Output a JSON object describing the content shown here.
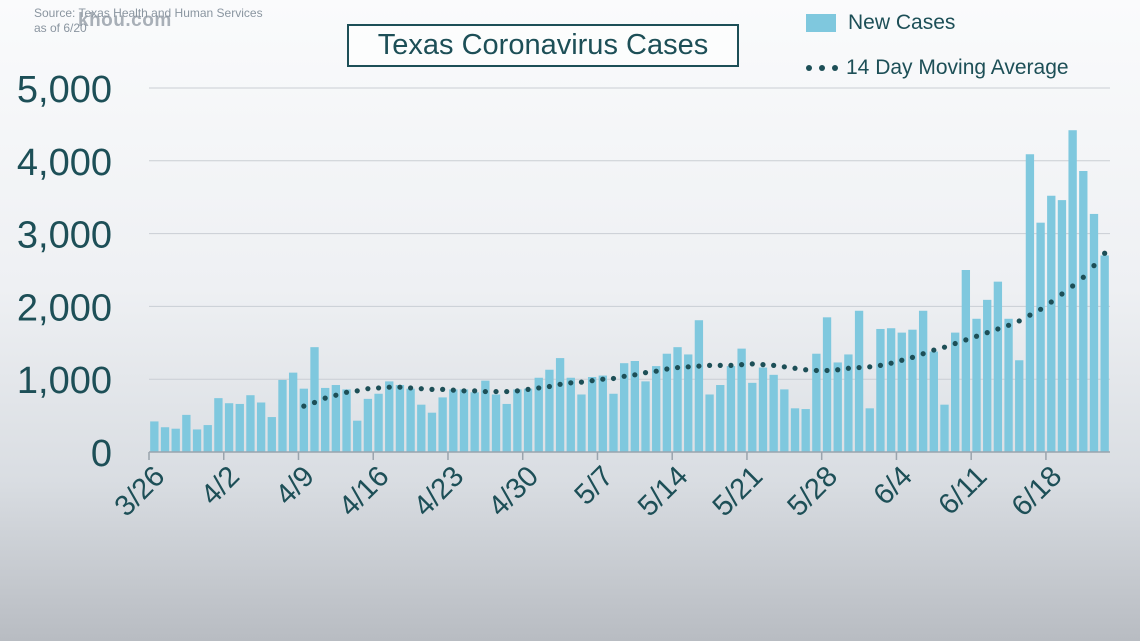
{
  "source": {
    "line1": "Source: Texas Health and Human Services",
    "line2": "as of 6/20"
  },
  "watermark": "khou.com",
  "colors": {
    "bar": "#7fc8de",
    "avg": "#1d4f57",
    "text": "#1d4f57",
    "grid": "#c9ced4"
  },
  "chart_data": {
    "type": "bar",
    "title": "Texas Coronavirus Cases",
    "xlabel": "",
    "ylabel": "",
    "ylim": [
      0,
      5000
    ],
    "yticks": [
      0,
      1000,
      2000,
      3000,
      4000,
      5000
    ],
    "ytick_labels": [
      "0",
      "1,000",
      "2,000",
      "3,000",
      "4,000",
      "5,000"
    ],
    "xtick_labels": [
      "3/26",
      "4/2",
      "4/9",
      "4/16",
      "4/23",
      "4/30",
      "5/7",
      "5/14",
      "5/21",
      "5/28",
      "6/4",
      "6/11",
      "6/18"
    ],
    "grid": true,
    "legend_placement": "top-right",
    "categories": [
      "3/26",
      "3/27",
      "3/28",
      "3/29",
      "3/30",
      "3/31",
      "4/1",
      "4/2",
      "4/3",
      "4/4",
      "4/5",
      "4/6",
      "4/7",
      "4/8",
      "4/9",
      "4/10",
      "4/11",
      "4/12",
      "4/13",
      "4/14",
      "4/15",
      "4/16",
      "4/17",
      "4/18",
      "4/19",
      "4/20",
      "4/21",
      "4/22",
      "4/23",
      "4/24",
      "4/25",
      "4/26",
      "4/27",
      "4/28",
      "4/29",
      "4/30",
      "5/1",
      "5/2",
      "5/3",
      "5/4",
      "5/5",
      "5/6",
      "5/7",
      "5/8",
      "5/9",
      "5/10",
      "5/11",
      "5/12",
      "5/13",
      "5/14",
      "5/15",
      "5/16",
      "5/17",
      "5/18",
      "5/19",
      "5/20",
      "5/21",
      "5/22",
      "5/23",
      "5/24",
      "5/25",
      "5/26",
      "5/27",
      "5/28",
      "5/29",
      "5/30",
      "5/31",
      "6/1",
      "6/2",
      "6/3",
      "6/4",
      "6/5",
      "6/6",
      "6/7",
      "6/8",
      "6/9",
      "6/10",
      "6/11",
      "6/12",
      "6/13",
      "6/14",
      "6/15",
      "6/16",
      "6/17",
      "6/18",
      "6/19",
      "6/20",
      "6/21",
      "6/22",
      "6/23"
    ],
    "series": [
      {
        "name": "New Cases",
        "values": [
          420,
          340,
          320,
          510,
          310,
          370,
          740,
          670,
          660,
          780,
          680,
          480,
          990,
          1090,
          870,
          1440,
          880,
          920,
          860,
          430,
          730,
          800,
          970,
          920,
          870,
          650,
          540,
          750,
          860,
          860,
          820,
          980,
          790,
          660,
          860,
          870,
          1020,
          1130,
          1290,
          1020,
          790,
          1030,
          1050,
          800,
          1220,
          1250,
          970,
          1180,
          1350,
          1440,
          1340,
          1810,
          790,
          920,
          1180,
          1420,
          950,
          1160,
          1060,
          860,
          600,
          590,
          1350,
          1850,
          1230,
          1340,
          1940,
          600,
          1690,
          1700,
          1640,
          1680,
          1940,
          1380,
          650,
          1640,
          2500,
          1830,
          2090,
          2340,
          1830,
          1260,
          4090,
          3150,
          3520,
          3460,
          4420,
          3860,
          3270,
          2700
        ]
      },
      {
        "name": "14 Day Moving Average",
        "values": [
          null,
          null,
          null,
          null,
          null,
          null,
          null,
          null,
          null,
          null,
          null,
          null,
          null,
          null,
          630,
          680,
          740,
          780,
          820,
          840,
          870,
          880,
          890,
          890,
          880,
          870,
          860,
          860,
          850,
          840,
          840,
          830,
          830,
          830,
          840,
          860,
          880,
          900,
          930,
          950,
          960,
          980,
          1000,
          1010,
          1040,
          1060,
          1090,
          1110,
          1140,
          1160,
          1170,
          1180,
          1190,
          1190,
          1190,
          1200,
          1210,
          1200,
          1190,
          1170,
          1150,
          1130,
          1120,
          1120,
          1130,
          1150,
          1160,
          1170,
          1190,
          1220,
          1260,
          1300,
          1350,
          1400,
          1440,
          1490,
          1540,
          1590,
          1640,
          1690,
          1740,
          1800,
          1880,
          1960,
          2060,
          2170,
          2280,
          2400,
          2560,
          2730
        ]
      }
    ]
  }
}
